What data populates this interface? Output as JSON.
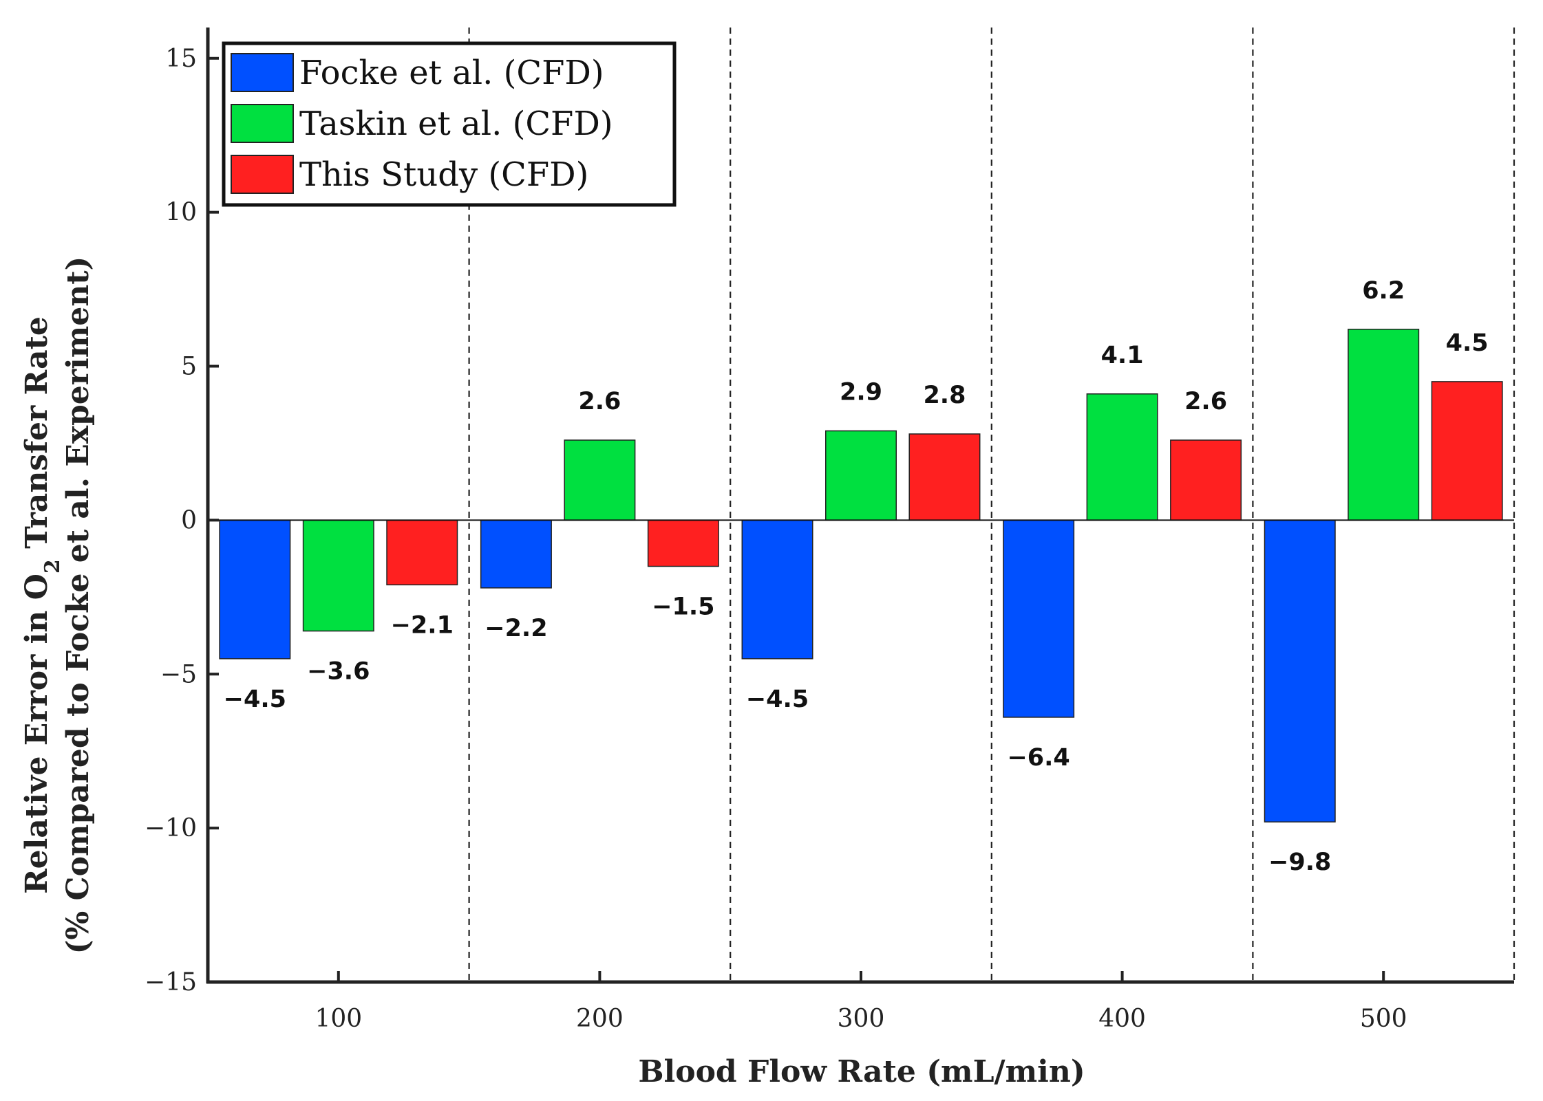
{
  "chart_data": {
    "type": "bar",
    "categories": [
      "100",
      "200",
      "300",
      "400",
      "500"
    ],
    "series": [
      {
        "name": "Focke et al. (CFD)",
        "color": "#0050ff",
        "values": [
          -4.5,
          -2.2,
          -4.5,
          -6.4,
          -9.8
        ],
        "labels": [
          "−4.5",
          "−2.2",
          "−4.5",
          "−6.4",
          "−9.8"
        ]
      },
      {
        "name": "Taskin et al. (CFD)",
        "color": "#00e040",
        "values": [
          -3.6,
          2.6,
          2.9,
          4.1,
          6.2
        ],
        "labels": [
          "−3.6",
          "2.6",
          "2.9",
          "4.1",
          "6.2"
        ]
      },
      {
        "name": "This Study (CFD)",
        "color": "#ff2020",
        "values": [
          -2.1,
          -1.5,
          2.8,
          2.6,
          4.5
        ],
        "labels": [
          "−2.1",
          "−1.5",
          "2.8",
          "2.6",
          "4.5"
        ]
      }
    ],
    "xlabel": "Blood Flow Rate (mL/min)",
    "ylabel_line1_pre": "Relative Error in O",
    "ylabel_sub": "2",
    "ylabel_line1_post": " Transfer Rate",
    "ylabel_line2": "(% Compared to Focke et al. Experiment)",
    "ylim": [
      -15,
      16
    ],
    "yticks": [
      15,
      10,
      5,
      0,
      -5,
      -10,
      -15
    ],
    "ytick_labels": [
      "15",
      "10",
      "5",
      "0",
      "−5",
      "−10",
      "−15"
    ],
    "xlim": [
      50,
      550
    ],
    "x_positions": [
      100,
      200,
      300,
      400,
      500
    ],
    "group_separators": [
      150,
      250,
      350,
      450,
      550
    ],
    "legend_position": "top-left",
    "grid": false
  }
}
